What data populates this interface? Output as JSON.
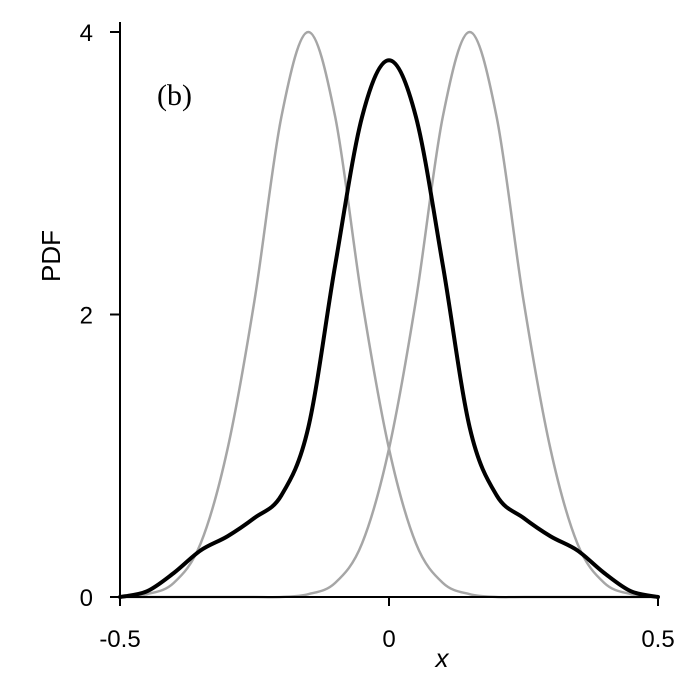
{
  "chart_data": {
    "type": "line",
    "panel_label": "(b)",
    "xlabel": "x",
    "ylabel": "PDF",
    "xlim": [
      -0.5,
      0.5
    ],
    "ylim": [
      0,
      4
    ],
    "x_ticks": [
      -0.5,
      0,
      0.5
    ],
    "x_tick_labels": [
      "-0.5",
      "0",
      "0.5"
    ],
    "y_ticks": [
      0,
      2,
      4
    ],
    "y_tick_labels": [
      "0",
      "2",
      "4"
    ],
    "grid": false,
    "legend": "none",
    "series": [
      {
        "color": "#a6a6a6",
        "x": [
          -0.5,
          -0.45,
          -0.4,
          -0.35,
          -0.3,
          -0.25,
          -0.2,
          -0.15,
          -0.1,
          -0.05,
          0,
          0.05,
          0.1,
          0.15,
          0.2,
          0.25,
          0.3,
          0.35,
          0.4,
          0.45,
          0.5
        ],
        "y": [
          0.0,
          0.02,
          0.1,
          0.38,
          1.05,
          2.1,
          3.4,
          4.0,
          3.4,
          2.1,
          1.05,
          0.38,
          0.1,
          0.02,
          0.0,
          0.0,
          0.0,
          0.0,
          0.0,
          0.0,
          0.0
        ]
      },
      {
        "color": "#a6a6a6",
        "x": [
          -0.5,
          -0.45,
          -0.4,
          -0.35,
          -0.3,
          -0.25,
          -0.2,
          -0.15,
          -0.1,
          -0.05,
          0,
          0.05,
          0.1,
          0.15,
          0.2,
          0.25,
          0.3,
          0.35,
          0.4,
          0.45,
          0.5
        ],
        "y": [
          0.0,
          0.0,
          0.0,
          0.0,
          0.0,
          0.0,
          0.0,
          0.02,
          0.1,
          0.38,
          1.05,
          2.1,
          3.4,
          4.0,
          3.4,
          2.1,
          1.05,
          0.38,
          0.1,
          0.02,
          0.0
        ]
      },
      {
        "color": "#000000",
        "x": [
          -0.5,
          -0.45,
          -0.4,
          -0.35,
          -0.3,
          -0.25,
          -0.2,
          -0.15,
          -0.1,
          -0.05,
          0,
          0.05,
          0.1,
          0.15,
          0.2,
          0.25,
          0.3,
          0.35,
          0.4,
          0.45,
          0.5
        ],
        "y": [
          0.0,
          0.04,
          0.17,
          0.33,
          0.43,
          0.56,
          0.72,
          1.2,
          2.35,
          3.4,
          3.8,
          3.4,
          2.35,
          1.2,
          0.72,
          0.56,
          0.43,
          0.33,
          0.17,
          0.04,
          0.0
        ]
      }
    ]
  }
}
